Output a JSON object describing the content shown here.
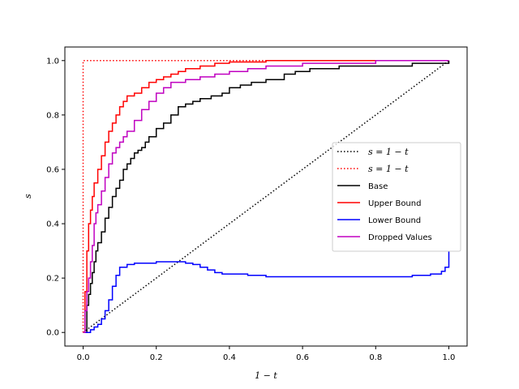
{
  "chart_data": {
    "type": "line",
    "xlabel": "1 − t",
    "ylabel": "s",
    "xlim": [
      -0.05,
      1.05
    ],
    "ylim": [
      -0.05,
      1.05
    ],
    "xticks": [
      0.0,
      0.2,
      0.4,
      0.6,
      0.8,
      1.0
    ],
    "yticks": [
      0.0,
      0.2,
      0.4,
      0.6,
      0.8,
      1.0
    ],
    "xtick_labels": [
      "0.0",
      "0.2",
      "0.4",
      "0.6",
      "0.8",
      "1.0"
    ],
    "ytick_labels": [
      "0.0",
      "0.2",
      "0.4",
      "0.6",
      "0.8",
      "1.0"
    ],
    "grid": false,
    "legend_position": "center-right",
    "series": [
      {
        "name": "s = 1 − t",
        "color": "#000000",
        "style": "dotted",
        "x": [
          0,
          1
        ],
        "y": [
          0,
          1
        ]
      },
      {
        "name": "s = 1 − t",
        "color": "#ff0000",
        "style": "dotted",
        "x": [
          0,
          0,
          1
        ],
        "y": [
          0,
          1,
          1
        ]
      },
      {
        "name": "Base",
        "color": "#000000",
        "style": "solid",
        "step": true,
        "x": [
          0,
          0.01,
          0.015,
          0.02,
          0.025,
          0.03,
          0.035,
          0.04,
          0.05,
          0.06,
          0.07,
          0.08,
          0.09,
          0.1,
          0.11,
          0.12,
          0.13,
          0.14,
          0.15,
          0.16,
          0.17,
          0.18,
          0.2,
          0.22,
          0.24,
          0.26,
          0.28,
          0.3,
          0.32,
          0.35,
          0.38,
          0.4,
          0.43,
          0.46,
          0.5,
          0.55,
          0.58,
          0.62,
          0.7,
          0.8,
          0.9,
          1.0
        ],
        "y": [
          0,
          0.1,
          0.14,
          0.18,
          0.22,
          0.26,
          0.3,
          0.33,
          0.37,
          0.42,
          0.46,
          0.5,
          0.53,
          0.56,
          0.6,
          0.62,
          0.64,
          0.66,
          0.67,
          0.68,
          0.7,
          0.72,
          0.75,
          0.77,
          0.8,
          0.83,
          0.84,
          0.85,
          0.86,
          0.87,
          0.88,
          0.9,
          0.91,
          0.92,
          0.93,
          0.95,
          0.96,
          0.97,
          0.98,
          0.98,
          0.99,
          1.0
        ]
      },
      {
        "name": "Upper Bound",
        "color": "#ff0000",
        "style": "solid",
        "step": true,
        "x": [
          0,
          0.005,
          0.01,
          0.015,
          0.02,
          0.025,
          0.03,
          0.04,
          0.05,
          0.06,
          0.07,
          0.08,
          0.09,
          0.1,
          0.11,
          0.12,
          0.14,
          0.16,
          0.18,
          0.2,
          0.22,
          0.24,
          0.26,
          0.28,
          0.32,
          0.36,
          0.4,
          0.5,
          0.6,
          0.8,
          1.0
        ],
        "y": [
          0,
          0.15,
          0.3,
          0.4,
          0.45,
          0.5,
          0.55,
          0.6,
          0.65,
          0.7,
          0.74,
          0.77,
          0.8,
          0.83,
          0.85,
          0.87,
          0.88,
          0.9,
          0.92,
          0.93,
          0.94,
          0.95,
          0.96,
          0.97,
          0.98,
          0.99,
          0.995,
          1.0,
          1.0,
          1.0,
          1.0
        ]
      },
      {
        "name": "Lower Bound",
        "color": "#0000ff",
        "style": "solid",
        "step": true,
        "x": [
          0,
          0.02,
          0.03,
          0.04,
          0.05,
          0.06,
          0.07,
          0.08,
          0.09,
          0.1,
          0.12,
          0.14,
          0.16,
          0.2,
          0.24,
          0.28,
          0.3,
          0.32,
          0.34,
          0.36,
          0.38,
          0.4,
          0.45,
          0.5,
          0.6,
          0.7,
          0.8,
          0.9,
          0.95,
          0.98,
          0.99,
          1.0
        ],
        "y": [
          0,
          0.01,
          0.02,
          0.03,
          0.05,
          0.08,
          0.12,
          0.17,
          0.21,
          0.24,
          0.25,
          0.255,
          0.255,
          0.26,
          0.26,
          0.255,
          0.25,
          0.24,
          0.23,
          0.22,
          0.215,
          0.215,
          0.21,
          0.205,
          0.205,
          0.205,
          0.205,
          0.21,
          0.215,
          0.225,
          0.24,
          0.3
        ]
      },
      {
        "name": "Dropped Values",
        "color": "#c000c0",
        "style": "solid",
        "step": true,
        "x": [
          0,
          0.005,
          0.01,
          0.015,
          0.02,
          0.025,
          0.03,
          0.035,
          0.04,
          0.05,
          0.06,
          0.07,
          0.08,
          0.09,
          0.1,
          0.11,
          0.12,
          0.14,
          0.16,
          0.18,
          0.2,
          0.22,
          0.24,
          0.28,
          0.32,
          0.36,
          0.4,
          0.45,
          0.5,
          0.6,
          0.8,
          1.0
        ],
        "y": [
          0,
          0.08,
          0.15,
          0.2,
          0.26,
          0.32,
          0.4,
          0.44,
          0.47,
          0.52,
          0.57,
          0.62,
          0.66,
          0.68,
          0.7,
          0.72,
          0.74,
          0.78,
          0.82,
          0.85,
          0.88,
          0.9,
          0.92,
          0.93,
          0.94,
          0.95,
          0.96,
          0.97,
          0.98,
          0.99,
          1.0,
          1.0
        ]
      }
    ],
    "legend": [
      {
        "label": "s = 1 − t",
        "color": "#000000",
        "style": "dotted"
      },
      {
        "label": "s = 1 − t",
        "color": "#ff0000",
        "style": "dotted"
      },
      {
        "label": "Base",
        "color": "#000000",
        "style": "solid"
      },
      {
        "label": "Upper Bound",
        "color": "#ff0000",
        "style": "solid"
      },
      {
        "label": "Lower Bound",
        "color": "#0000ff",
        "style": "solid"
      },
      {
        "label": "Dropped Values",
        "color": "#c000c0",
        "style": "solid"
      }
    ]
  }
}
